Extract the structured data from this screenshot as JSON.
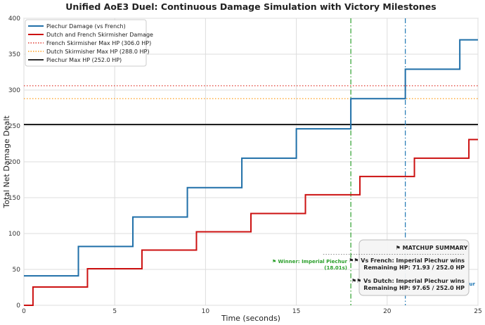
{
  "chart_data": {
    "type": "line",
    "title": "Unified AoE3 Duel: Continuous Damage Simulation with Victory Milestones",
    "xlabel": "Time (seconds)",
    "ylabel": "Total Net Damage Dealt",
    "xlim": [
      0,
      25
    ],
    "ylim": [
      0,
      400
    ],
    "xticks": [
      0,
      5,
      10,
      15,
      20,
      25
    ],
    "yticks": [
      0,
      50,
      100,
      150,
      200,
      250,
      300,
      350,
      400
    ],
    "grid": true,
    "legend_position": "top-left",
    "series": [
      {
        "name": "Piechur Damage (vs French)",
        "color": "#1f6fa8",
        "style": "step-post",
        "x": [
          0,
          3,
          6,
          9,
          12,
          15,
          18,
          21,
          24,
          25
        ],
        "y": [
          41,
          82,
          123,
          164,
          205,
          246,
          288,
          329,
          370,
          370
        ]
      },
      {
        "name": "Dutch and French Skirmisher Damage",
        "color": "#cc1111",
        "style": "step-post",
        "x": [
          0,
          0.5,
          3.5,
          6.5,
          9.5,
          12.5,
          15.5,
          18.5,
          21.5,
          24.5,
          25
        ],
        "y": [
          0,
          25.5,
          51,
          77,
          102.5,
          128,
          154,
          179.5,
          205,
          231,
          231
        ]
      }
    ],
    "reference_lines": [
      {
        "name": "French Skirmisher Max HP (306.0 HP)",
        "orientation": "horizontal",
        "value": 306.0,
        "color": "#e03c31",
        "style": "dotted"
      },
      {
        "name": "Dutch Skirmisher Max HP (288.0 HP)",
        "orientation": "horizontal",
        "value": 288.0,
        "color": "#ff9f1c",
        "style": "dotted"
      },
      {
        "name": "Piechur Max HP (252.0 HP)",
        "orientation": "horizontal",
        "value": 252.0,
        "color": "#111111",
        "style": "solid"
      },
      {
        "orientation": "vertical",
        "value": 18.0,
        "color": "#2ca02c",
        "style": "dashdot"
      },
      {
        "orientation": "vertical",
        "value": 21.0,
        "color": "#1f77b4",
        "style": "dashdot"
      }
    ],
    "annotations": [
      {
        "text_line1": "⚑ Winner: Imperial Piechur",
        "text_line2": "(18.01s)",
        "color": "#2ca02c"
      },
      {
        "text_line1": "hur",
        "color": "#1f77b4"
      }
    ],
    "summary_box": {
      "title": "⚑ MATCHUP SUMMARY",
      "rule": "--------------------------------------------------------",
      "line1": "⚑⚑ Vs French: Imperial Piechur wins",
      "line2": "Remaining HP: 71.93 / 252.0 HP",
      "line3": "⚑⚑ Vs Dutch: Imperial Piechur wins",
      "line4": "Remaining HP: 97.65 / 252.0 HP"
    }
  }
}
